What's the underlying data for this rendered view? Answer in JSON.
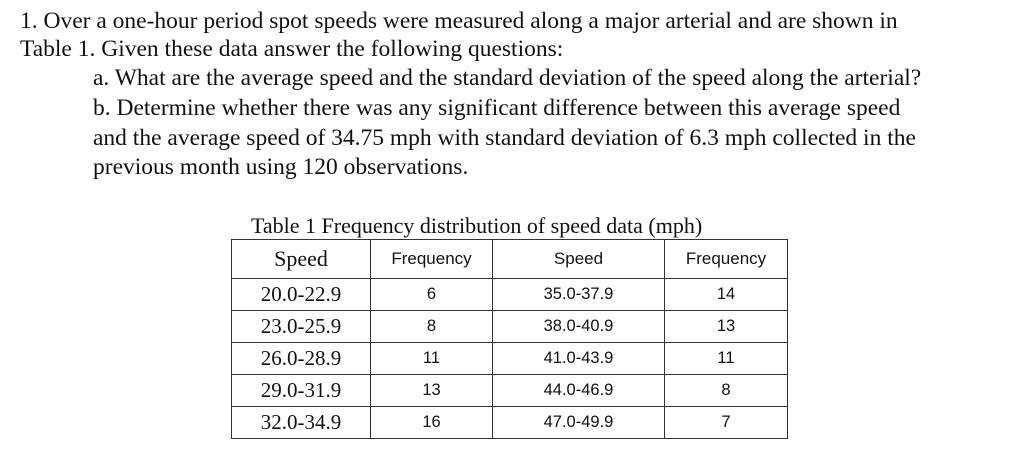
{
  "question": {
    "lines": [
      "1. Over a one-hour period spot speeds were measured along a major arterial and are shown in",
      "Table 1. Given these data answer the following questions:",
      "a. What are the average speed and the standard deviation of the speed along the arterial?",
      "b. Determine whether there was any significant difference between this average speed",
      "and the average speed of 34.75 mph with standard deviation of 6.3 mph collected in the",
      "previous month using 120 observations."
    ]
  },
  "table": {
    "caption": "Table 1 Frequency distribution of speed data (mph)",
    "headers": [
      "Speed",
      "Frequency",
      "Speed",
      "Frequency"
    ],
    "rows": [
      [
        "20.0-22.9",
        "6",
        "35.0-37.9",
        "14"
      ],
      [
        "23.0-25.9",
        "8",
        "38.0-40.9",
        "13"
      ],
      [
        "26.0-28.9",
        "11",
        "41.0-43.9",
        "11"
      ],
      [
        "29.0-31.9",
        "13",
        "44.0-46.9",
        "8"
      ],
      [
        "32.0-34.9",
        "16",
        "47.0-49.9",
        "7"
      ]
    ]
  }
}
